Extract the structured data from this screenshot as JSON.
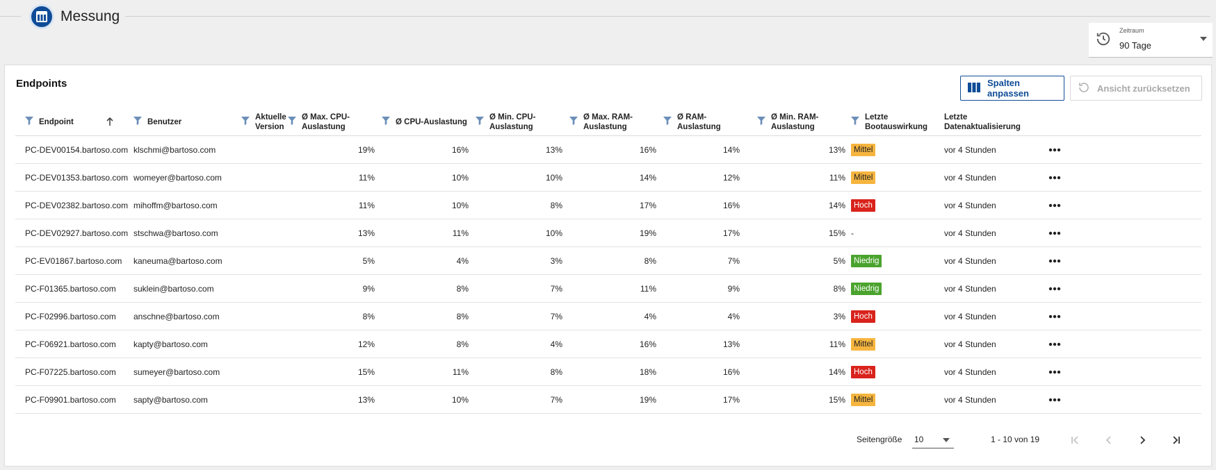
{
  "app": {
    "title": "Messung"
  },
  "period": {
    "label": "Zeitraum",
    "value": "90 Tage"
  },
  "card": {
    "title": "Endpoints",
    "customize_label": "Spalten anpassen",
    "reset_label": "Ansicht zurücksetzen"
  },
  "columns": {
    "endpoint": "Endpoint",
    "user": "Benutzer",
    "version": "Aktuelle Version",
    "max_cpu": "Ø Max. CPU-Auslastung",
    "cpu": "Ø CPU-Auslastung",
    "min_cpu": "Ø Min. CPU-Auslastung",
    "max_ram": "Ø Max. RAM-Auslastung",
    "ram": "Ø RAM-Auslastung",
    "min_ram": "Ø Min. RAM-Auslastung",
    "boot": "Letzte Bootauswirkung",
    "updated": "Letzte Datenaktualisierung"
  },
  "rows": [
    {
      "endpoint": "PC-DEV00154.bartoso.com",
      "user": "klschmi@bartoso.com",
      "max_cpu": "19%",
      "cpu": "16%",
      "min_cpu": "13%",
      "max_ram": "16%",
      "ram": "14%",
      "min_ram": "13%",
      "boot": "Mittel",
      "updated": "vor 4 Stunden"
    },
    {
      "endpoint": "PC-DEV01353.bartoso.com",
      "user": "womeyer@bartoso.com",
      "max_cpu": "11%",
      "cpu": "10%",
      "min_cpu": "10%",
      "max_ram": "14%",
      "ram": "12%",
      "min_ram": "11%",
      "boot": "Mittel",
      "updated": "vor 4 Stunden"
    },
    {
      "endpoint": "PC-DEV02382.bartoso.com",
      "user": "mihoffm@bartoso.com",
      "max_cpu": "11%",
      "cpu": "10%",
      "min_cpu": "8%",
      "max_ram": "17%",
      "ram": "16%",
      "min_ram": "14%",
      "boot": "Hoch",
      "updated": "vor 4 Stunden"
    },
    {
      "endpoint": "PC-DEV02927.bartoso.com",
      "user": "stschwa@bartoso.com",
      "max_cpu": "13%",
      "cpu": "11%",
      "min_cpu": "10%",
      "max_ram": "19%",
      "ram": "17%",
      "min_ram": "15%",
      "boot": "-",
      "updated": "vor 4 Stunden"
    },
    {
      "endpoint": "PC-EV01867.bartoso.com",
      "user": "kaneuma@bartoso.com",
      "max_cpu": "5%",
      "cpu": "4%",
      "min_cpu": "3%",
      "max_ram": "8%",
      "ram": "7%",
      "min_ram": "5%",
      "boot": "Niedrig",
      "updated": "vor 4 Stunden"
    },
    {
      "endpoint": "PC-F01365.bartoso.com",
      "user": "suklein@bartoso.com",
      "max_cpu": "9%",
      "cpu": "8%",
      "min_cpu": "7%",
      "max_ram": "11%",
      "ram": "9%",
      "min_ram": "8%",
      "boot": "Niedrig",
      "updated": "vor 4 Stunden"
    },
    {
      "endpoint": "PC-F02996.bartoso.com",
      "user": "anschne@bartoso.com",
      "max_cpu": "8%",
      "cpu": "8%",
      "min_cpu": "7%",
      "max_ram": "4%",
      "ram": "4%",
      "min_ram": "3%",
      "boot": "Hoch",
      "updated": "vor 4 Stunden"
    },
    {
      "endpoint": "PC-F06921.bartoso.com",
      "user": "kapty@bartoso.com",
      "max_cpu": "12%",
      "cpu": "8%",
      "min_cpu": "4%",
      "max_ram": "16%",
      "ram": "13%",
      "min_ram": "11%",
      "boot": "Mittel",
      "updated": "vor 4 Stunden"
    },
    {
      "endpoint": "PC-F07225.bartoso.com",
      "user": "sumeyer@bartoso.com",
      "max_cpu": "15%",
      "cpu": "11%",
      "min_cpu": "8%",
      "max_ram": "18%",
      "ram": "16%",
      "min_ram": "14%",
      "boot": "Hoch",
      "updated": "vor 4 Stunden"
    },
    {
      "endpoint": "PC-F09901.bartoso.com",
      "user": "sapty@bartoso.com",
      "max_cpu": "13%",
      "cpu": "10%",
      "min_cpu": "7%",
      "max_ram": "19%",
      "ram": "17%",
      "min_ram": "15%",
      "boot": "Mittel",
      "updated": "vor 4 Stunden"
    }
  ],
  "boot_colors": {
    "Mittel": "#f6b53f",
    "Hoch": "#d9231c",
    "Niedrig": "#4aa32d"
  },
  "pagination": {
    "page_size_label": "Seitengröße",
    "page_size": "10",
    "range": "1 - 10 von 19"
  },
  "colors": {
    "primary": "#0f4c97",
    "filter_icon": "#6b8eb8"
  },
  "icons": {
    "row_menu": "more-horizontal-icon"
  }
}
